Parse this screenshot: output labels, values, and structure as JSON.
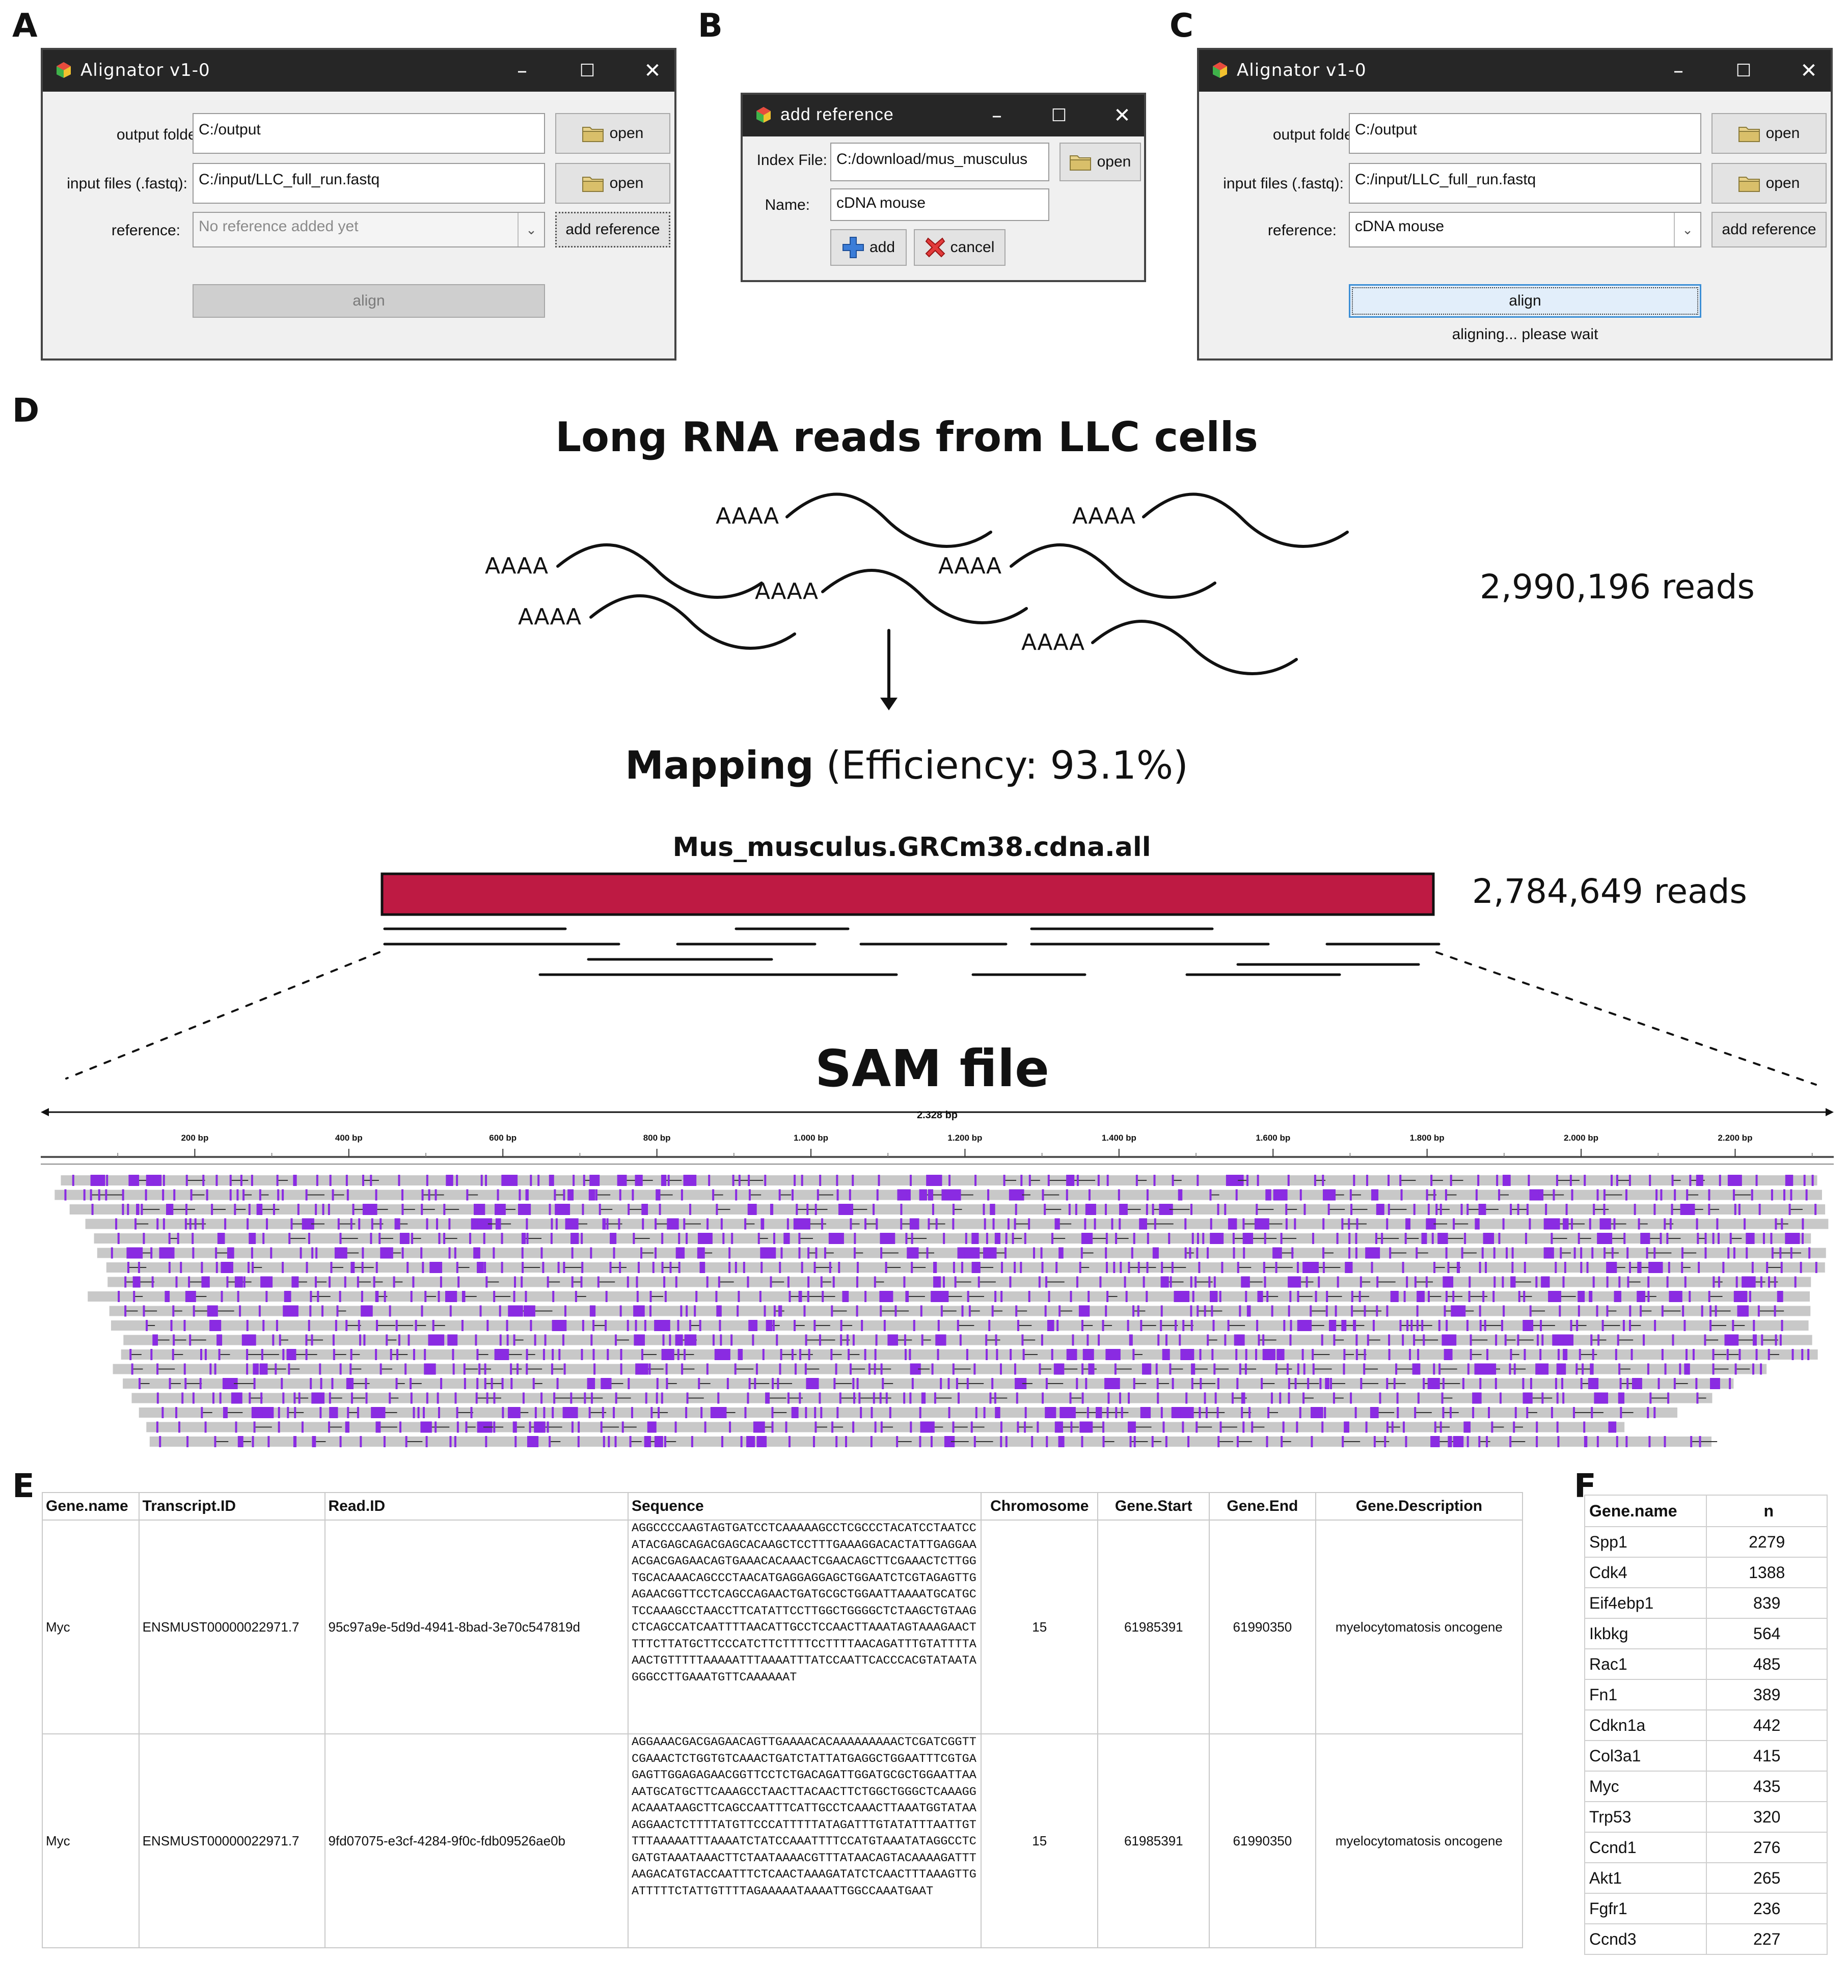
{
  "panel_labels": {
    "a": "A",
    "b": "B",
    "c": "C",
    "d": "D",
    "e": "E",
    "f": "F"
  },
  "window_a": {
    "title": "Alignator v1-0",
    "output_label": "output folder:",
    "output_value": "C:/output",
    "input_label": "input files (.fastq):",
    "input_value": "C:/input/LLC_full_run.fastq",
    "reference_label": "reference:",
    "reference_value": "No reference added yet",
    "open_label": "open",
    "add_reference_label": "add reference",
    "align_label": "align"
  },
  "window_b": {
    "title": "add reference",
    "index_label": "Index File:",
    "index_value": "C:/download/mus_musculus",
    "open_label": "open",
    "name_label": "Name:",
    "name_value": "cDNA mouse",
    "add_label": "add",
    "cancel_label": "cancel"
  },
  "window_c": {
    "title": "Alignator v1-0",
    "output_label": "output folder:",
    "output_value": "C:/output",
    "input_label": "input files (.fastq):",
    "input_value": "C:/input/LLC_full_run.fastq",
    "reference_label": "reference:",
    "reference_value": "cDNA mouse",
    "open_label": "open",
    "add_reference_label": "add reference",
    "align_label": "align",
    "status": "aligning... please wait"
  },
  "diagram": {
    "title": "Long RNA reads from LLC cells",
    "polya_label": "AAAA",
    "total_reads": "2,990,196 reads",
    "mapping_bold": "Mapping",
    "mapping_rest": " (Efficiency: 93.1%)",
    "reference_name": "Mus_musculus.GRCm38.cdna.all",
    "mapped_reads": "2,784,649 reads",
    "sam_title": "SAM file",
    "ruler_total": "2.328 bp",
    "ruler_ticks": [
      "200 bp",
      "400 bp",
      "600 bp",
      "800 bp",
      "1.000 bp",
      "1.200 bp",
      "1.400 bp",
      "1.600 bp",
      "1.800 bp",
      "2.000 bp",
      "2.200 bp"
    ],
    "colors": {
      "reference_bar": "#be1a43",
      "read_bar": "#c8c8c8",
      "mismatch": "#8a2be2"
    }
  },
  "table_e": {
    "headers": [
      "Gene.name",
      "Transcript.ID",
      "Read.ID",
      "Sequence",
      "Chromosome",
      "Gene.Start",
      "Gene.End",
      "Gene.Description"
    ],
    "rows": [
      {
        "gene": "Myc",
        "transcript": "ENSMUST00000022971.7",
        "read": "95c97a9e-5d9d-4941-8bad-3e70c547819d",
        "sequence": "AGGCCCCAAGTAGTGATCCTCAAAAAGCCTCGCCCTACATCCTAATCCATACGAGCAGACGAGCACAAGCTCCTTTGAAAGGACACTATTGAGGAAACGACGAGAACAGTGAAACACAAACTCGAACAGCTTCGAAACTCTTGGTGCACAAACAGCCCTAACATGAGGAGGAGCTGGAATCTCGTAGAGTTGAGAACGGTTCCTCAGCCAGAACTGATGCGCTGGAATTAAAATGCATGCTCCAAAGCCTAACCTTCATATTCCTTGGCTGGGGCTCTAAGCTGTAAGCTCAGCCATCAATTTTAACATTGCCTCCAACTTAAATAGTAAAGAACTTTTCTTATGCTTCCCATCTTCTTTTCCTTTTAACAGATTTGTATTTTAAACTGTTTTTAAAAATTTAAAATTTATCCAATTCACCCACGTATAATAGGGCCTTGAAATGTTCAAAAAAT",
        "chromosome": "15",
        "start": "61985391",
        "end": "61990350",
        "description": "myelocytomatosis oncogene"
      },
      {
        "gene": "Myc",
        "transcript": "ENSMUST00000022971.7",
        "read": "9fd07075-e3cf-4284-9f0c-fdb09526ae0b",
        "sequence": "AGGAAACGACGAGAACAGTTGAAAACACAAAAAAAAACTCGATCGGTTCGAAACTCTGGTGTCAAACTGATCTATTATGAGGCTGGAATTTCGTGAGAGTTGGAGAGAACGGTTCCTCTGACAGATTGGATGCGCTGGAATTAAAATGCATGCTTCAAAGCCTAACTTACAACTTCTGGCTGGGCTCAAAGGACAAATAAGCTTCAGCCAATTTCATTGCCTCAAACTTAAATGGTATAAAGGAACTCTTTTATGTTCCCATTTTTATAGATTTGTATATTTAATTGTTTTAAAAATTTAAAATCTATCCAAATTTTCCATGTAAATATAGGCCTCGATGTAAATAAACTTCTAATAAAACGTTTATAACAGTACAAAAGATTTAAGACATGTACCAATTTCTCAACTAAAGATATCTCAACTTTAAAGTTGATTTTTCTATTGTTTTAGAAAAATAAAATTGGCCAAATGAAT",
        "chromosome": "15",
        "start": "61985391",
        "end": "61990350",
        "description": "myelocytomatosis oncogene"
      }
    ]
  },
  "table_f": {
    "headers": [
      "Gene.name",
      "n"
    ],
    "rows": [
      [
        "Spp1",
        "2279"
      ],
      [
        "Cdk4",
        "1388"
      ],
      [
        "Eif4ebp1",
        "839"
      ],
      [
        "Ikbkg",
        "564"
      ],
      [
        "Rac1",
        "485"
      ],
      [
        "Fn1",
        "389"
      ],
      [
        "Cdkn1a",
        "442"
      ],
      [
        "Col3a1",
        "415"
      ],
      [
        "Myc",
        "435"
      ],
      [
        "Trp53",
        "320"
      ],
      [
        "Ccnd1",
        "276"
      ],
      [
        "Akt1",
        "265"
      ],
      [
        "Fgfr1",
        "236"
      ],
      [
        "Ccnd3",
        "227"
      ]
    ]
  }
}
